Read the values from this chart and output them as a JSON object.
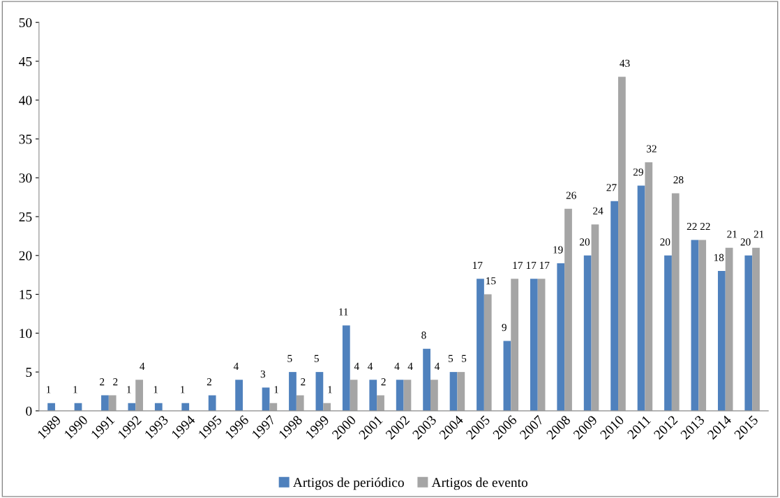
{
  "chart_data": {
    "type": "bar",
    "categories": [
      "1989",
      "1990",
      "1991",
      "1992",
      "1993",
      "1994",
      "1995",
      "1996",
      "1997",
      "1998",
      "1999",
      "2000",
      "2001",
      "2002",
      "2003",
      "2004",
      "2005",
      "2006",
      "2007",
      "2008",
      "2009",
      "2010",
      "2011",
      "2012",
      "2013",
      "2014",
      "2015"
    ],
    "series": [
      {
        "name": "Artigos de periódico",
        "color": "#4f81bd",
        "values": [
          1,
          1,
          2,
          1,
          1,
          1,
          2,
          4,
          3,
          5,
          5,
          11,
          4,
          4,
          8,
          5,
          17,
          9,
          17,
          19,
          20,
          27,
          29,
          20,
          22,
          18,
          20
        ]
      },
      {
        "name": "Artigos de evento",
        "color": "#a5a5a5",
        "values": [
          null,
          null,
          2,
          4,
          null,
          null,
          null,
          null,
          1,
          2,
          1,
          4,
          2,
          4,
          4,
          5,
          15,
          17,
          17,
          26,
          24,
          43,
          32,
          28,
          22,
          21,
          21
        ]
      }
    ],
    "ylim": [
      0,
      50
    ],
    "yticks": [
      0,
      5,
      10,
      15,
      20,
      25,
      30,
      35,
      40,
      45,
      50
    ],
    "data_labels": true,
    "grid": false,
    "legend": "bottom"
  }
}
